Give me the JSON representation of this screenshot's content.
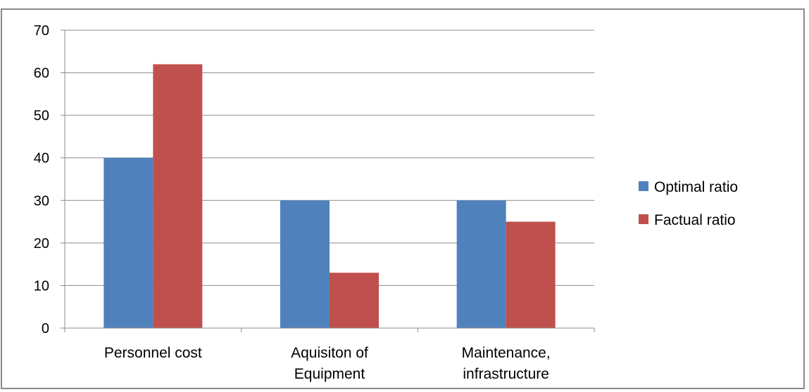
{
  "chart_data": {
    "type": "bar",
    "categories": [
      [
        "Personnel cost"
      ],
      [
        "Aquisiton of",
        "Equipment"
      ],
      [
        "Maintenance,",
        "infrastructure"
      ]
    ],
    "series": [
      {
        "name": "Optimal ratio",
        "values": [
          40,
          30,
          30
        ],
        "color": "#4f81bd"
      },
      {
        "name": "Factual ratio",
        "values": [
          62,
          13,
          25
        ],
        "color": "#c0504d"
      }
    ],
    "ylim": [
      0,
      70
    ],
    "yticks": [
      "0",
      "10",
      "20",
      "30",
      "40",
      "50",
      "60",
      "70"
    ],
    "grid": true,
    "legend": "right"
  }
}
